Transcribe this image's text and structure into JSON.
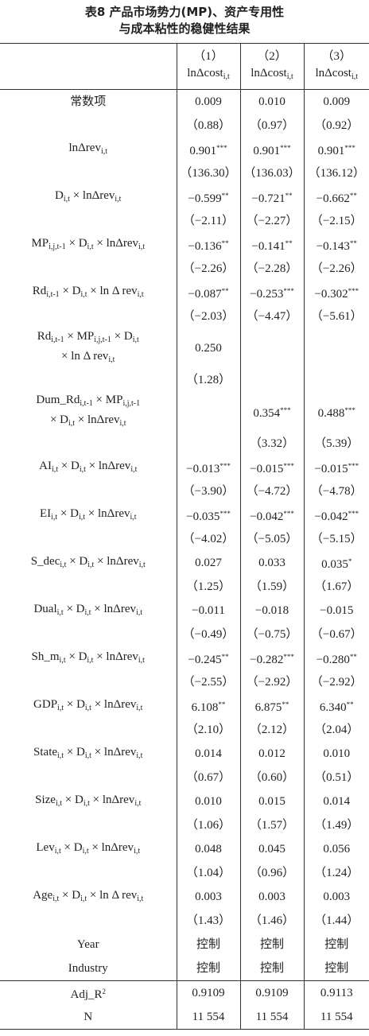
{
  "title": {
    "lines": [
      "表8 产品市场势力(MP)、资产专用性",
      "与成本粘性的稳健性结果"
    ]
  },
  "header": {
    "columns": [
      {
        "number": "（1）",
        "label": {
          "text": "lnΔcost",
          "sub": "i,t"
        }
      },
      {
        "number": "（2）",
        "label": {
          "text": "lnΔcost",
          "sub": "i,t"
        }
      },
      {
        "number": "（3）",
        "label": {
          "text": "lnΔcost",
          "sub": "i,t"
        }
      }
    ]
  },
  "rows": [
    {
      "label": [
        [
          {
            "text": "常数项"
          }
        ]
      ],
      "cells": [
        {
          "v": "0.009"
        },
        {
          "v": "0.010"
        },
        {
          "v": "0.009"
        }
      ]
    },
    {
      "label": null,
      "cells": [
        {
          "v": "（0.88）"
        },
        {
          "v": "（0.97）"
        },
        {
          "v": "（0.92）"
        }
      ]
    },
    {
      "label": [
        [
          {
            "text": "lnΔrev",
            "sub": "i,t"
          }
        ]
      ],
      "cells": [
        {
          "v": "0.901",
          "sup": "***"
        },
        {
          "v": "0.901",
          "sup": "***"
        },
        {
          "v": "0.901",
          "sup": "***"
        }
      ]
    },
    {
      "label": null,
      "cells": [
        {
          "v": "（136.30）"
        },
        {
          "v": "（136.03）"
        },
        {
          "v": "（136.12）"
        }
      ]
    },
    {
      "label": [
        [
          {
            "text": "D",
            "sub": "i,t"
          },
          {
            "text": " × lnΔrev",
            "sub": "i,t"
          }
        ]
      ],
      "cells": [
        {
          "v": "−0.599",
          "sup": "**"
        },
        {
          "v": "−0.721",
          "sup": "**"
        },
        {
          "v": "−0.662",
          "sup": "**"
        }
      ]
    },
    {
      "label": null,
      "cells": [
        {
          "v": "（−2.11）"
        },
        {
          "v": "（−2.27）"
        },
        {
          "v": "（−2.15）"
        }
      ]
    },
    {
      "label": [
        [
          {
            "text": "MP",
            "sub": "i,j,t-1"
          },
          {
            "text": " × D",
            "sub": "i,t"
          },
          {
            "text": " × lnΔrev",
            "sub": "i,t"
          }
        ]
      ],
      "cells": [
        {
          "v": "−0.136",
          "sup": "**"
        },
        {
          "v": "−0.141",
          "sup": "**"
        },
        {
          "v": "−0.143",
          "sup": "**"
        }
      ]
    },
    {
      "label": null,
      "cells": [
        {
          "v": "（−2.26）"
        },
        {
          "v": "（−2.28）"
        },
        {
          "v": "（−2.26）"
        }
      ]
    },
    {
      "label": [
        [
          {
            "text": "Rd",
            "sub": "i,t-1"
          },
          {
            "text": " × D",
            "sub": "i,t"
          },
          {
            "text": " × ln Δ rev",
            "sub": "i,t"
          }
        ]
      ],
      "cells": [
        {
          "v": "−0.087",
          "sup": "**"
        },
        {
          "v": "−0.253",
          "sup": "***"
        },
        {
          "v": "−0.302",
          "sup": "***"
        }
      ]
    },
    {
      "label": null,
      "cells": [
        {
          "v": "（−2.03）"
        },
        {
          "v": "（−4.47）"
        },
        {
          "v": "（−5.61）"
        }
      ]
    },
    {
      "label": [
        [
          {
            "text": "Rd",
            "sub": "i,t-1"
          },
          {
            "text": " × MP",
            "sub": "i,j,t-1"
          },
          {
            "text": " × D",
            "sub": "i,t"
          }
        ],
        [
          {
            "text": "× ln Δ rev",
            "sub": "i,t"
          }
        ]
      ],
      "cells": [
        {
          "v": "0.250"
        },
        null,
        null
      ]
    },
    {
      "label": null,
      "cells": [
        {
          "v": "（1.28）"
        },
        null,
        null
      ]
    },
    {
      "label": [
        [
          {
            "text": "Dum_Rd",
            "sub": "i,t-1"
          },
          {
            "text": " × MP",
            "sub": "i,j,t-1"
          }
        ],
        [
          {
            "text": "× D",
            "sub": "i,t"
          },
          {
            "text": " × lnΔrev",
            "sub": "i,t"
          }
        ]
      ],
      "cells": [
        null,
        {
          "v": "0.354",
          "sup": "***"
        },
        {
          "v": "0.488",
          "sup": "***"
        }
      ]
    },
    {
      "label": null,
      "cells": [
        null,
        {
          "v": "（3.32）"
        },
        {
          "v": "（5.39）"
        }
      ]
    },
    {
      "label": [
        [
          {
            "text": "AI",
            "sub": "i,t"
          },
          {
            "text": " × D",
            "sub": "i,t"
          },
          {
            "text": " × lnΔrev",
            "sub": "i,t"
          }
        ]
      ],
      "cells": [
        {
          "v": "−0.013",
          "sup": "***"
        },
        {
          "v": "−0.015",
          "sup": "***"
        },
        {
          "v": "−0.015",
          "sup": "***"
        }
      ]
    },
    {
      "label": null,
      "cells": [
        {
          "v": "（−3.90）"
        },
        {
          "v": "（−4.72）"
        },
        {
          "v": "（−4.78）"
        }
      ]
    },
    {
      "label": [
        [
          {
            "text": "EI",
            "sub": "i,t"
          },
          {
            "text": " × D",
            "sub": "i,t"
          },
          {
            "text": " × lnΔrev",
            "sub": "i,t"
          }
        ]
      ],
      "cells": [
        {
          "v": "−0.035",
          "sup": "***"
        },
        {
          "v": "−0.042",
          "sup": "***"
        },
        {
          "v": "−0.042",
          "sup": "***"
        }
      ]
    },
    {
      "label": null,
      "cells": [
        {
          "v": "（−4.02）"
        },
        {
          "v": "（−5.05）"
        },
        {
          "v": "（−5.15）"
        }
      ]
    },
    {
      "label": [
        [
          {
            "text": "S_dec",
            "sub": "i,t"
          },
          {
            "text": " × D",
            "sub": "i,t"
          },
          {
            "text": " × lnΔrev",
            "sub": "i,t"
          }
        ]
      ],
      "cells": [
        {
          "v": "0.027"
        },
        {
          "v": "0.033"
        },
        {
          "v": "0.035",
          "sup": "*"
        }
      ]
    },
    {
      "label": null,
      "cells": [
        {
          "v": "（1.25）"
        },
        {
          "v": "（1.59）"
        },
        {
          "v": "（1.67）"
        }
      ]
    },
    {
      "label": [
        [
          {
            "text": "Dual",
            "sub": "i,t"
          },
          {
            "text": " × D",
            "sub": "i,t"
          },
          {
            "text": " × lnΔrev",
            "sub": "i,t"
          }
        ]
      ],
      "cells": [
        {
          "v": "−0.011"
        },
        {
          "v": "−0.018"
        },
        {
          "v": "−0.015"
        }
      ]
    },
    {
      "label": null,
      "cells": [
        {
          "v": "（−0.49）"
        },
        {
          "v": "（−0.75）"
        },
        {
          "v": "（−0.67）"
        }
      ]
    },
    {
      "label": [
        [
          {
            "text": "Sh_m",
            "sub": "i,t"
          },
          {
            "text": " × D",
            "sub": "i,t"
          },
          {
            "text": " × lnΔrev",
            "sub": "i,t"
          }
        ]
      ],
      "cells": [
        {
          "v": "−0.245",
          "sup": "**"
        },
        {
          "v": "−0.282",
          "sup": "***"
        },
        {
          "v": "−0.280",
          "sup": "**"
        }
      ]
    },
    {
      "label": null,
      "cells": [
        {
          "v": "（−2.55）"
        },
        {
          "v": "（−2.92）"
        },
        {
          "v": "（−2.92）"
        }
      ]
    },
    {
      "label": [
        [
          {
            "text": "GDP",
            "sub": "i,t"
          },
          {
            "text": " × D",
            "sub": "i,t"
          },
          {
            "text": " × lnΔrev",
            "sub": "i,t"
          }
        ]
      ],
      "cells": [
        {
          "v": "6.108",
          "sup": "**"
        },
        {
          "v": "6.875",
          "sup": "**"
        },
        {
          "v": "6.340",
          "sup": "**"
        }
      ]
    },
    {
      "label": null,
      "cells": [
        {
          "v": "（2.10）"
        },
        {
          "v": "（2.12）"
        },
        {
          "v": "（2.04）"
        }
      ]
    },
    {
      "label": [
        [
          {
            "text": "State",
            "sub": "i,t"
          },
          {
            "text": " × D",
            "sub": "i,t"
          },
          {
            "text": " × lnΔrev",
            "sub": "i,t"
          }
        ]
      ],
      "cells": [
        {
          "v": "0.014"
        },
        {
          "v": "0.012"
        },
        {
          "v": "0.010"
        }
      ]
    },
    {
      "label": null,
      "cells": [
        {
          "v": "（0.67）"
        },
        {
          "v": "（0.60）"
        },
        {
          "v": "（0.51）"
        }
      ]
    },
    {
      "label": [
        [
          {
            "text": "Size",
            "sub": "i,t"
          },
          {
            "text": " × D",
            "sub": "i,t"
          },
          {
            "text": " × lnΔrev",
            "sub": "i,t"
          }
        ]
      ],
      "cells": [
        {
          "v": "0.010"
        },
        {
          "v": "0.015"
        },
        {
          "v": "0.014"
        }
      ]
    },
    {
      "label": null,
      "cells": [
        {
          "v": "（1.06）"
        },
        {
          "v": "（1.57）"
        },
        {
          "v": "（1.49）"
        }
      ]
    },
    {
      "label": [
        [
          {
            "text": "Lev",
            "sub": "i,t"
          },
          {
            "text": " × D",
            "sub": "i,t"
          },
          {
            "text": " × lnΔrev",
            "sub": "i,t"
          }
        ]
      ],
      "cells": [
        {
          "v": "0.048"
        },
        {
          "v": "0.045"
        },
        {
          "v": "0.056"
        }
      ]
    },
    {
      "label": null,
      "cells": [
        {
          "v": "（1.04）"
        },
        {
          "v": "（0.96）"
        },
        {
          "v": "（1.24）"
        }
      ]
    },
    {
      "label": [
        [
          {
            "text": "Age",
            "sub": "i,t"
          },
          {
            "text": " × D",
            "sub": "i,t"
          },
          {
            "text": " × ln Δ rev",
            "sub": "i,t"
          }
        ]
      ],
      "cells": [
        {
          "v": "0.003"
        },
        {
          "v": "0.003"
        },
        {
          "v": "0.003"
        }
      ]
    },
    {
      "label": null,
      "cells": [
        {
          "v": "（1.43）"
        },
        {
          "v": "（1.46）"
        },
        {
          "v": "（1.44）"
        }
      ]
    },
    {
      "label": [
        [
          {
            "text": "Year"
          }
        ]
      ],
      "cells": [
        {
          "v": "控制"
        },
        {
          "v": "控制"
        },
        {
          "v": "控制"
        }
      ]
    },
    {
      "label": [
        [
          {
            "text": "Industry"
          }
        ]
      ],
      "cells": [
        {
          "v": "控制"
        },
        {
          "v": "控制"
        },
        {
          "v": "控制"
        }
      ]
    }
  ],
  "footer_rows": [
    {
      "label": [
        [
          {
            "text": "Adj_R",
            "sup": "2"
          }
        ]
      ],
      "cells": [
        {
          "v": "0.9109"
        },
        {
          "v": "0.9109"
        },
        {
          "v": "0.9113"
        }
      ]
    },
    {
      "label": [
        [
          {
            "text": "N"
          }
        ]
      ],
      "cells": [
        {
          "v": "11 554"
        },
        {
          "v": "11 554"
        },
        {
          "v": "11 554"
        }
      ]
    }
  ]
}
